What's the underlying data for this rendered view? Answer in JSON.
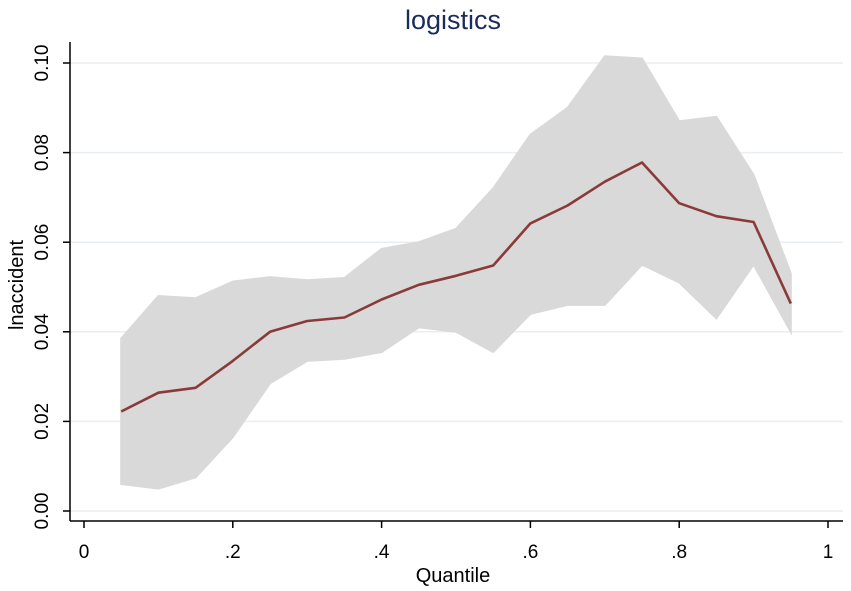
{
  "chart_data": {
    "type": "line",
    "title": "logistics",
    "xlabel": "Quantile",
    "ylabel": "lnaccident",
    "xlim": [
      0,
      1
    ],
    "ylim": [
      0,
      0.1
    ],
    "x_ticks": [
      {
        "value": 0,
        "label": "0"
      },
      {
        "value": 0.2,
        "label": ".2"
      },
      {
        "value": 0.4,
        "label": ".4"
      },
      {
        "value": 0.6,
        "label": ".6"
      },
      {
        "value": 0.8,
        "label": ".8"
      },
      {
        "value": 1,
        "label": "1"
      }
    ],
    "y_ticks": [
      {
        "value": 0,
        "label": "0.00"
      },
      {
        "value": 0.02,
        "label": "0.02"
      },
      {
        "value": 0.04,
        "label": "0.04"
      },
      {
        "value": 0.06,
        "label": "0.06"
      },
      {
        "value": 0.08,
        "label": "0.08"
      },
      {
        "value": 0.1,
        "label": "0.10"
      }
    ],
    "grid": true,
    "x": [
      0.05,
      0.1,
      0.15,
      0.2,
      0.25,
      0.3,
      0.35,
      0.4,
      0.45,
      0.5,
      0.55,
      0.6,
      0.65,
      0.7,
      0.75,
      0.8,
      0.85,
      0.9,
      0.95
    ],
    "estimate": [
      0.0222,
      0.0264,
      0.0275,
      0.0335,
      0.04,
      0.0424,
      0.0432,
      0.0472,
      0.0505,
      0.0525,
      0.0548,
      0.0642,
      0.0682,
      0.0735,
      0.0778,
      0.0687,
      0.0658,
      0.0645,
      0.0463
    ],
    "ci_upper": [
      0.0385,
      0.048,
      0.0475,
      0.0512,
      0.0522,
      0.0515,
      0.052,
      0.0585,
      0.06,
      0.063,
      0.072,
      0.084,
      0.09,
      0.1015,
      0.101,
      0.087,
      0.088,
      0.075,
      0.053
    ],
    "ci_lower": [
      0.006,
      0.005,
      0.0075,
      0.0165,
      0.0285,
      0.0335,
      0.034,
      0.0355,
      0.041,
      0.04,
      0.0355,
      0.044,
      0.046,
      0.046,
      0.055,
      0.051,
      0.043,
      0.055,
      0.04
    ],
    "colors": {
      "line": "#8b3a3a",
      "band": "#d9d9d9",
      "grid": "#e8eef2",
      "axis": "#000000",
      "title": "#1a2b5c"
    }
  }
}
